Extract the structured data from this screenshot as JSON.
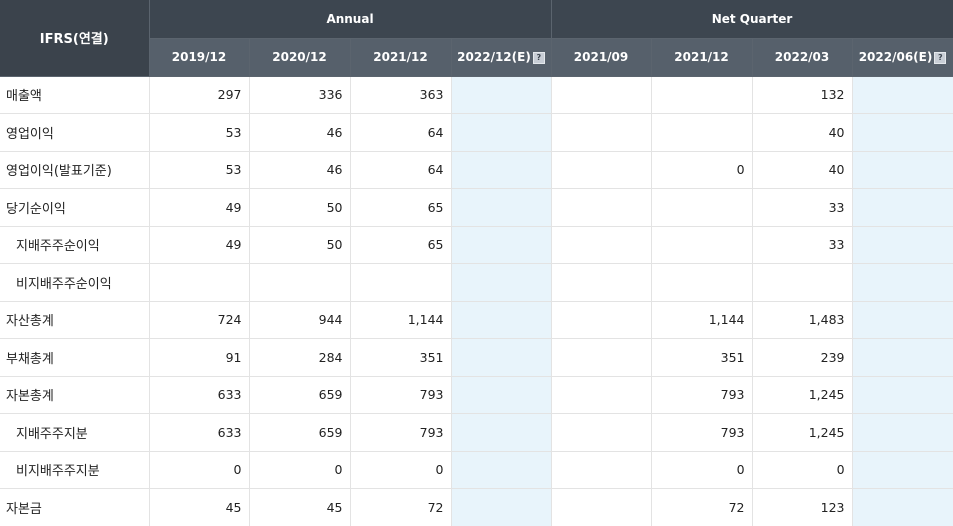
{
  "header": {
    "corner_label": "IFRS(연결)",
    "annual_label": "Annual",
    "quarter_label": "Net Quarter",
    "annual_periods": [
      {
        "label": "2019/12"
      },
      {
        "label": "2020/12"
      },
      {
        "label": "2021/12"
      },
      {
        "label": "2022/12(E)",
        "estimate": true
      }
    ],
    "quarter_periods": [
      {
        "label": "2021/09"
      },
      {
        "label": "2021/12"
      },
      {
        "label": "2022/03"
      },
      {
        "label": "2022/06(E)",
        "estimate": true
      }
    ],
    "estimate_icon_glyph": "?"
  },
  "rows": [
    {
      "label": "매출액",
      "indent": false,
      "values": [
        "297",
        "336",
        "363",
        "",
        "",
        "",
        "132",
        ""
      ]
    },
    {
      "label": "영업이익",
      "indent": false,
      "values": [
        "53",
        "46",
        "64",
        "",
        "",
        "",
        "40",
        ""
      ]
    },
    {
      "label": "영업이익(발표기준)",
      "indent": false,
      "values": [
        "53",
        "46",
        "64",
        "",
        "",
        "0",
        "40",
        ""
      ]
    },
    {
      "label": "당기순이익",
      "indent": false,
      "values": [
        "49",
        "50",
        "65",
        "",
        "",
        "",
        "33",
        ""
      ]
    },
    {
      "label": "지배주주순이익",
      "indent": true,
      "values": [
        "49",
        "50",
        "65",
        "",
        "",
        "",
        "33",
        ""
      ]
    },
    {
      "label": "비지배주주순이익",
      "indent": true,
      "values": [
        "",
        "",
        "",
        "",
        "",
        "",
        "",
        ""
      ]
    },
    {
      "label": "자산총계",
      "indent": false,
      "values": [
        "724",
        "944",
        "1,144",
        "",
        "",
        "1,144",
        "1,483",
        ""
      ]
    },
    {
      "label": "부채총계",
      "indent": false,
      "values": [
        "91",
        "284",
        "351",
        "",
        "",
        "351",
        "239",
        ""
      ]
    },
    {
      "label": "자본총계",
      "indent": false,
      "values": [
        "633",
        "659",
        "793",
        "",
        "",
        "793",
        "1,245",
        ""
      ]
    },
    {
      "label": "지배주주지분",
      "indent": true,
      "values": [
        "633",
        "659",
        "793",
        "",
        "",
        "793",
        "1,245",
        ""
      ]
    },
    {
      "label": "비지배주주지분",
      "indent": true,
      "values": [
        "0",
        "0",
        "0",
        "",
        "",
        "0",
        "0",
        ""
      ]
    },
    {
      "label": "자본금",
      "indent": false,
      "values": [
        "45",
        "45",
        "72",
        "",
        "",
        "72",
        "123",
        ""
      ]
    }
  ],
  "colors": {
    "header_dark": "#3d4650",
    "header_sub": "#56606b",
    "estimate_column_bg": "#e8f4fb",
    "grid_line": "#e3e3e3"
  }
}
